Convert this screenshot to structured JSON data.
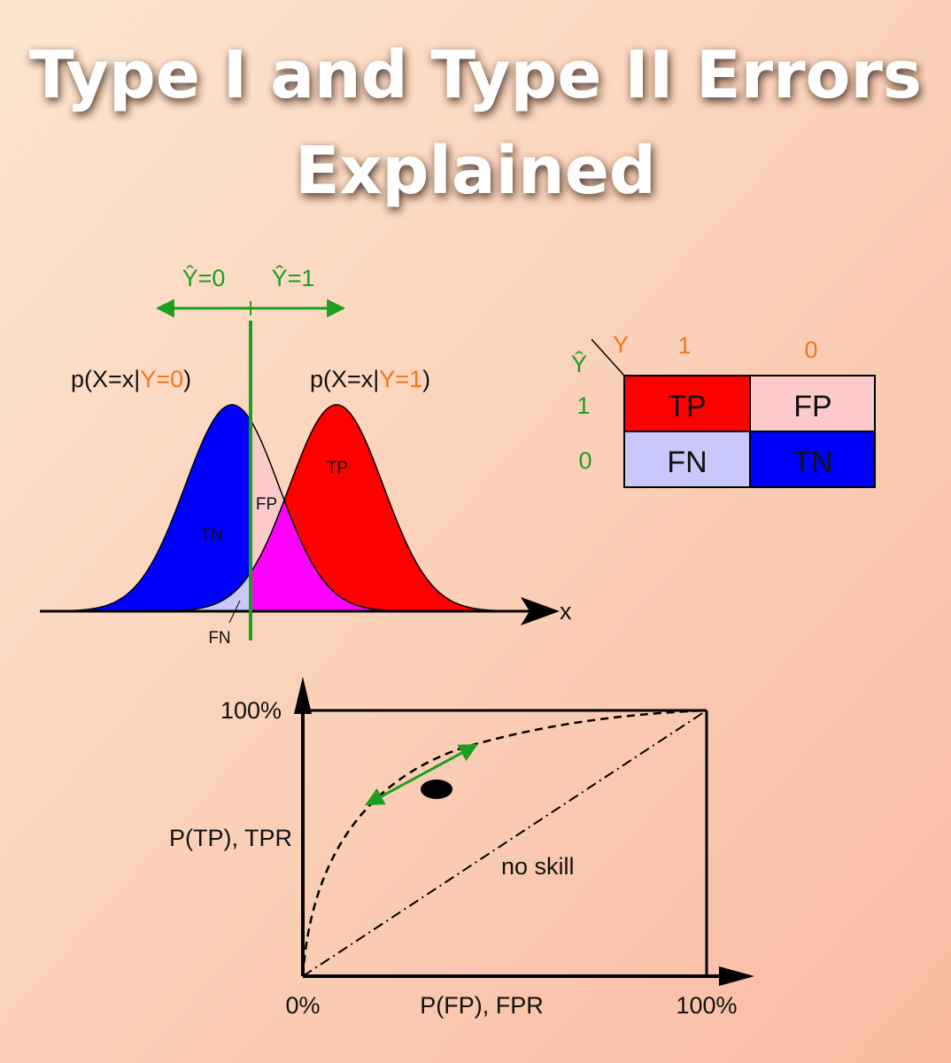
{
  "title": {
    "lines": [
      "Type I and Type II Errors",
      "Explained"
    ]
  },
  "distributions": {
    "prediction_labels": [
      "Ŷ=0",
      "Ŷ=1"
    ],
    "curve_labels": [
      {
        "prefix": "p(X=x|",
        "condition": "Y=0",
        "suffix": ")"
      },
      {
        "prefix": "p(X=x|",
        "condition": "Y=1",
        "suffix": ")"
      }
    ],
    "regions": [
      "TN",
      "FP",
      "TP",
      "FN"
    ],
    "axis_label": "x"
  },
  "confusion_matrix": {
    "actual_label": "Y",
    "predicted_label": "Ŷ",
    "columns": [
      "1",
      "0"
    ],
    "rows": [
      "1",
      "0"
    ],
    "cells": [
      [
        "TP",
        "FP"
      ],
      [
        "FN",
        "TN"
      ]
    ]
  },
  "roc": {
    "y_max_label": "100%",
    "y_label": "P(TP), TPR",
    "x_min_label": "0%",
    "x_label": "P(FP), FPR",
    "x_max_label": "100%",
    "diagonal_label": "no skill"
  }
}
